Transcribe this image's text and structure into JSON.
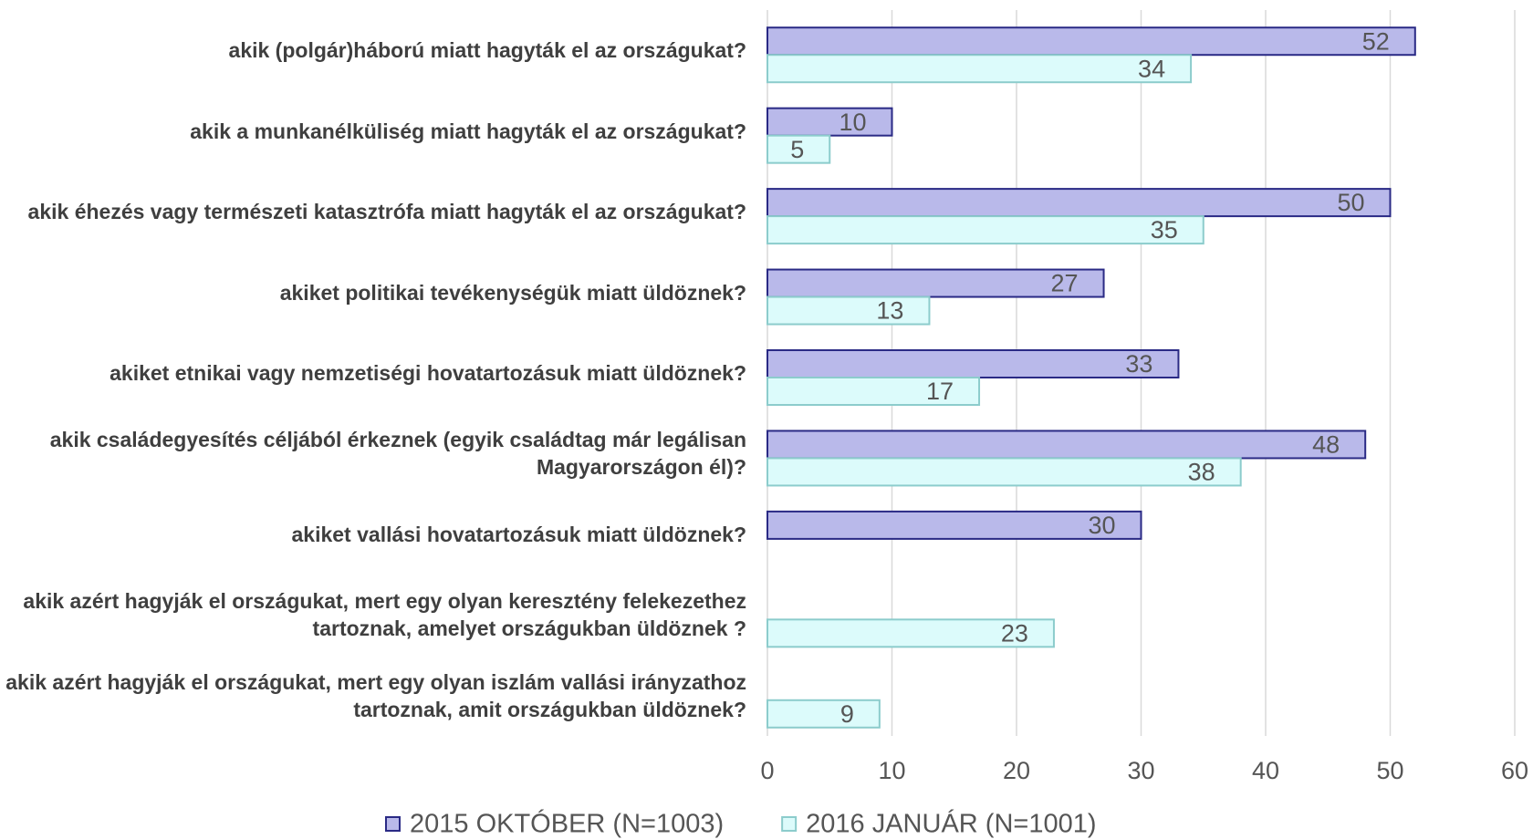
{
  "chart_data": {
    "type": "hbar",
    "categories": [
      "akik (polgár)háború miatt hagyták el az országukat?",
      "akik a munkanélküliség miatt hagyták el az országukat?",
      "akik éhezés vagy természeti katasztrófa miatt hagyták el az országukat?",
      "akiket politikai tevékenységük miatt üldöznek?",
      "akiket etnikai vagy nemzetiségi hovatartozásuk miatt üldöznek?",
      "akik családegyesítés céljából érkeznek (egyik családtag már legálisan Magyarországon él)?",
      "akiket vallási hovatartozásuk miatt üldöznek?",
      "akik azért hagyják el országukat, mert egy olyan keresztény felekezethez tartoznak, amelyet országukban üldöznek ?",
      "akik azért hagyják el országukat, mert egy olyan iszlám vallási irányzathoz tartoznak, amit országukban üldöznek?"
    ],
    "series": [
      {
        "name": "2015 OKTÓBER (N=1003)",
        "color": "#b9b9ea",
        "values": [
          52,
          10,
          50,
          27,
          33,
          48,
          30,
          null,
          null
        ]
      },
      {
        "name": "2016 JANUÁR (N=1001)",
        "color": "#dcfbfb",
        "values": [
          34,
          5,
          35,
          13,
          17,
          38,
          null,
          23,
          9
        ]
      }
    ],
    "xlim": [
      0,
      60
    ],
    "xticks": [
      0,
      10,
      20,
      30,
      40,
      50,
      60
    ],
    "grid": true,
    "legend": "bottom"
  }
}
